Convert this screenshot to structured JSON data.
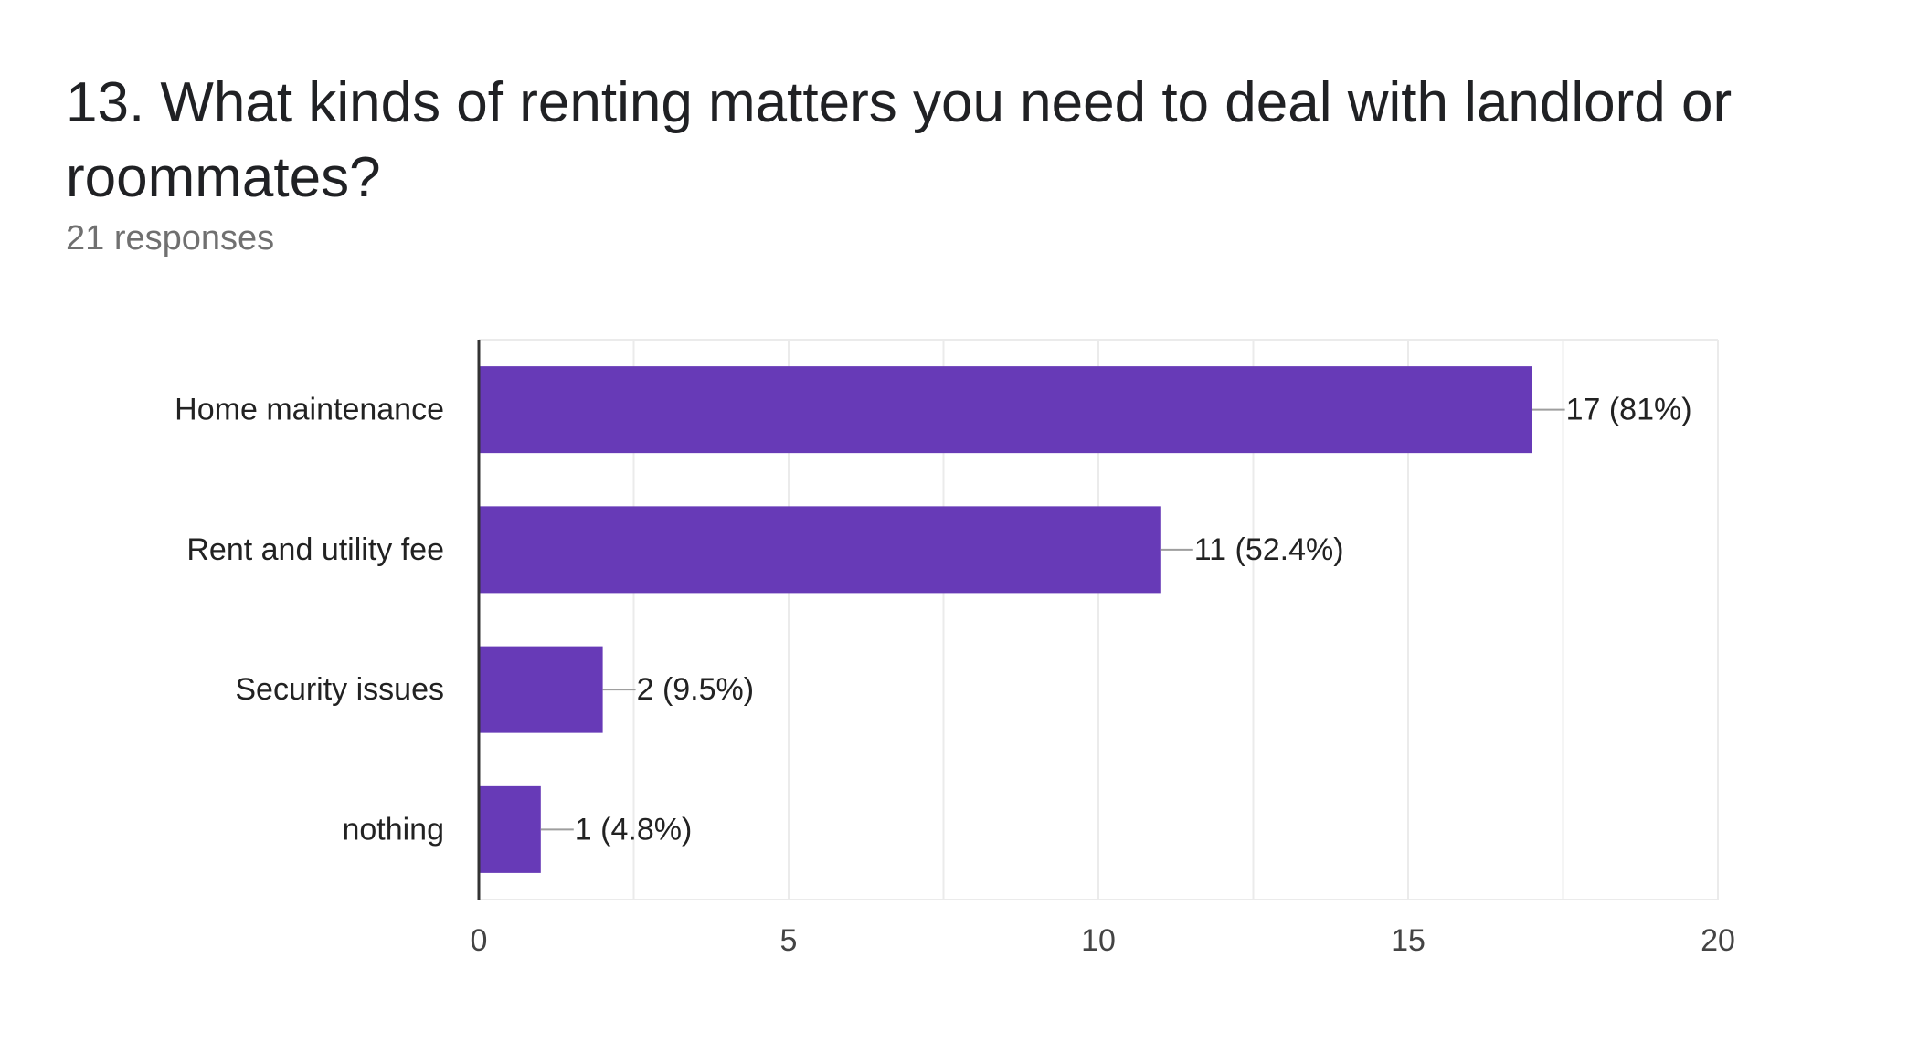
{
  "question_title": "13. What kinds of renting matters you need to deal with landlord or roommates?",
  "responses_text": "21 responses",
  "chart_data": {
    "type": "bar",
    "orientation": "horizontal",
    "title": "13. What kinds of renting matters you need to deal with landlord or roommates?",
    "subtitle": "21 responses",
    "categories": [
      "Home maintenance",
      "Rent and utility fee",
      "Security issues",
      "nothing"
    ],
    "values": [
      17,
      11,
      2,
      1
    ],
    "data_labels": [
      "17 (81%)",
      "11 (52.4%)",
      "2 (9.5%)",
      "1 (4.8%)"
    ],
    "xlim": [
      0,
      20
    ],
    "x_ticks": [
      0,
      5,
      10,
      15,
      20
    ],
    "grid": true,
    "bar_color": "#673AB7"
  }
}
